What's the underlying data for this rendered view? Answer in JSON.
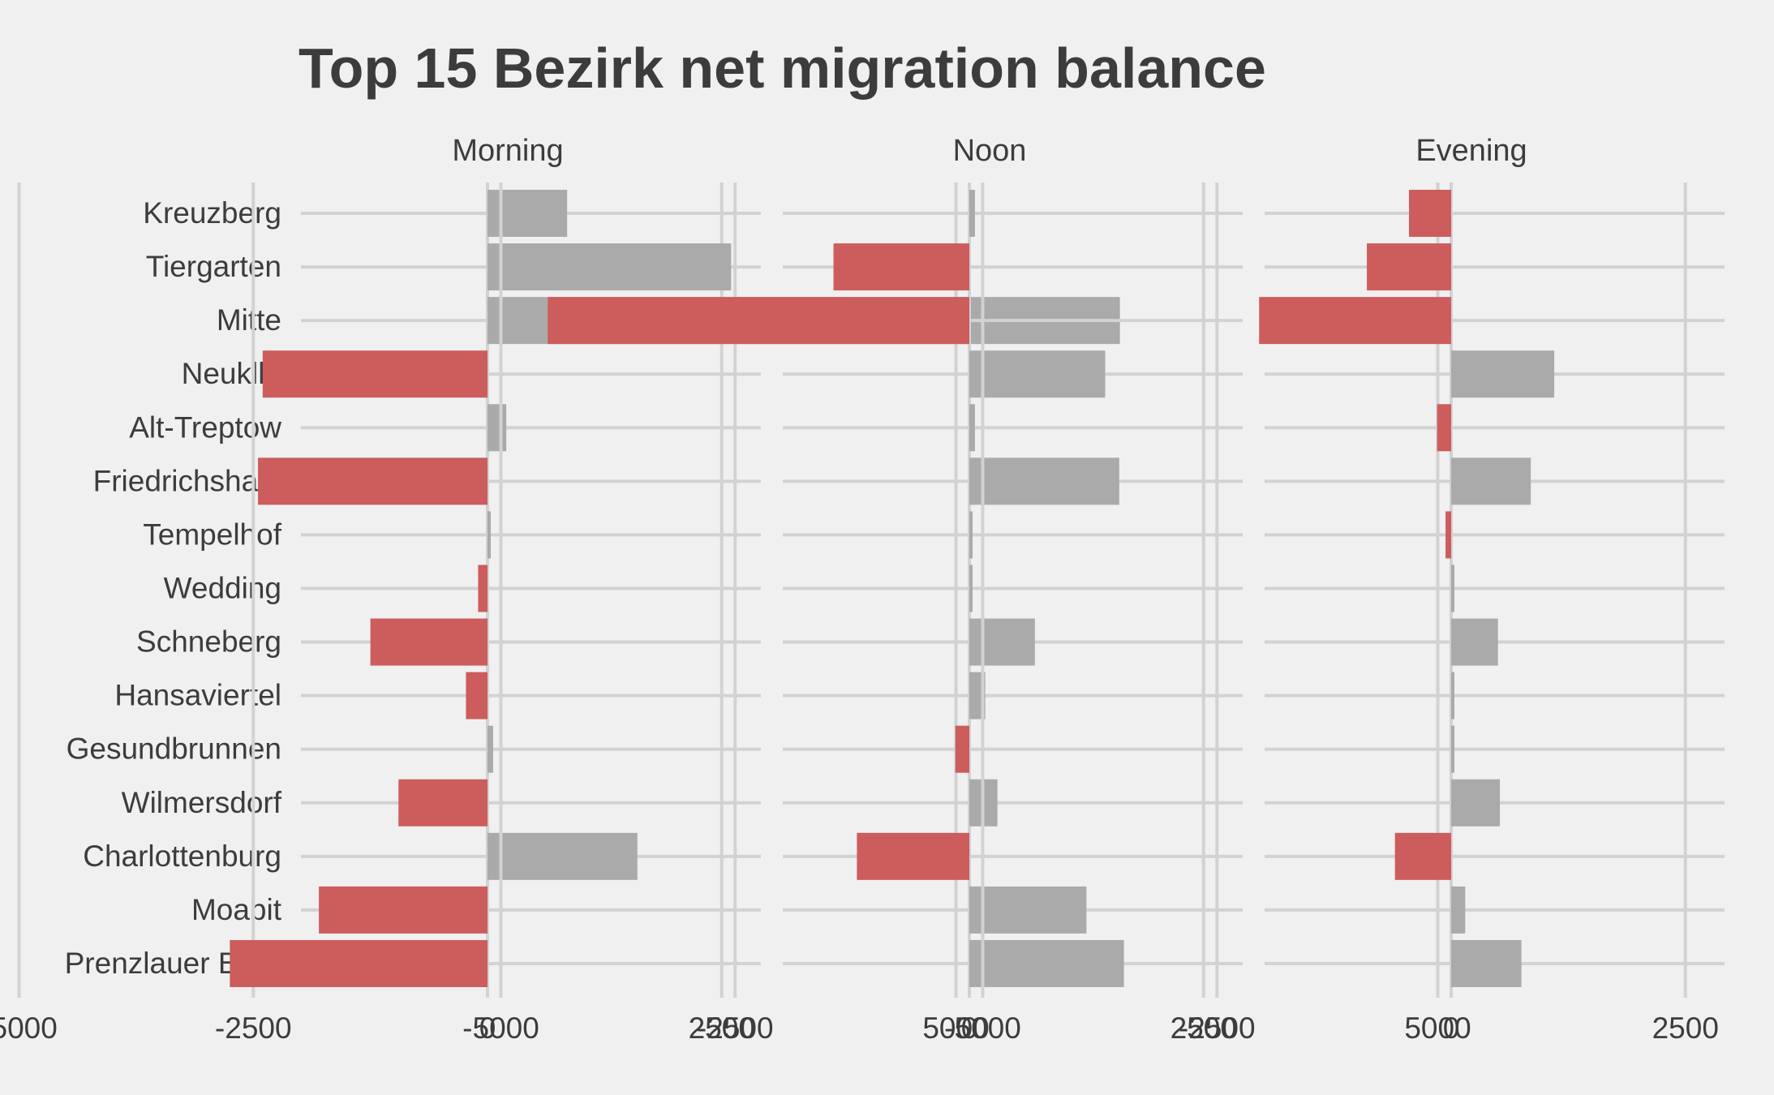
{
  "chart_data": {
    "type": "bar",
    "orientation": "horizontal",
    "title": "Top 15 Bezirk net migration balance",
    "categories": [
      "Kreuzberg",
      "Tiergarten",
      "Mitte",
      "Neuklln",
      "Alt-Treptow",
      "Friedrichshain",
      "Tempelhof",
      "Wedding",
      "Schneberg",
      "Hansaviertel",
      "Gesundbrunnen",
      "Wilmersdorf",
      "Charlottenburg",
      "Moabit",
      "Prenzlauer Berg"
    ],
    "panels": [
      {
        "title": "Morning",
        "values": [
          850,
          2600,
          6750,
          -2400,
          200,
          -2450,
          0,
          -100,
          -1250,
          -230,
          60,
          -950,
          1600,
          -1800,
          -2750
        ]
      },
      {
        "title": "Noon",
        "values": [
          60,
          -1450,
          -4500,
          1450,
          60,
          1600,
          30,
          20,
          700,
          170,
          -150,
          300,
          -1200,
          1250,
          1650
        ]
      },
      {
        "title": "Evening",
        "values": [
          -450,
          -900,
          -2050,
          1100,
          -150,
          850,
          -60,
          20,
          500,
          20,
          0,
          520,
          -600,
          150,
          750
        ]
      }
    ],
    "x_ticks": [
      -5000,
      -2500,
      0,
      2500,
      5000
    ],
    "x_tick_labels": [
      "-5000",
      "-2500",
      "0",
      "2500",
      "5000"
    ],
    "xlim": [
      -5000,
      7000
    ],
    "grid": true,
    "colors": {
      "positive": "#aaaaaa",
      "negative": "#cd5c5c",
      "background": "#f0f0f0",
      "grid": "#d2d2d2",
      "text": "#3c3c3c"
    }
  }
}
